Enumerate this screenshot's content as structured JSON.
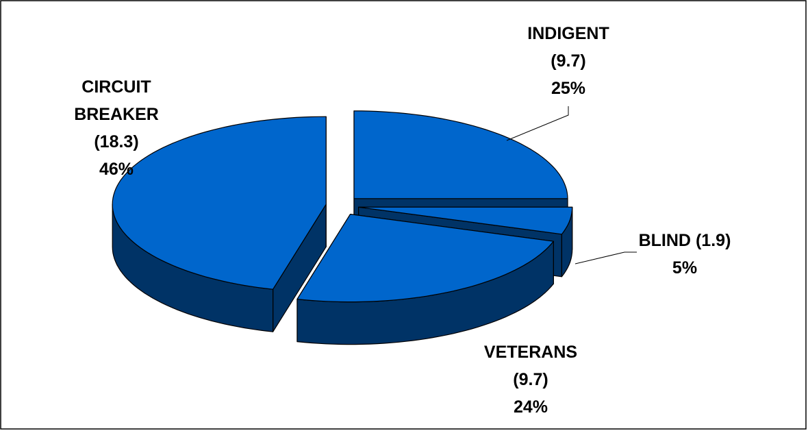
{
  "chart_data": {
    "type": "pie3d",
    "categories": [
      "INDIGENT",
      "BLIND",
      "VETERANS",
      "CIRCUIT BREAKER"
    ],
    "values": [
      25,
      5,
      24,
      46
    ],
    "value_labels": [
      "25%",
      "5%",
      "24%",
      "46%"
    ],
    "amount_labels": [
      "(9.7)",
      "(1.9)",
      "(9.7)",
      "(18.3)"
    ],
    "top_color": "#0066cc",
    "side_color": "#003366"
  }
}
